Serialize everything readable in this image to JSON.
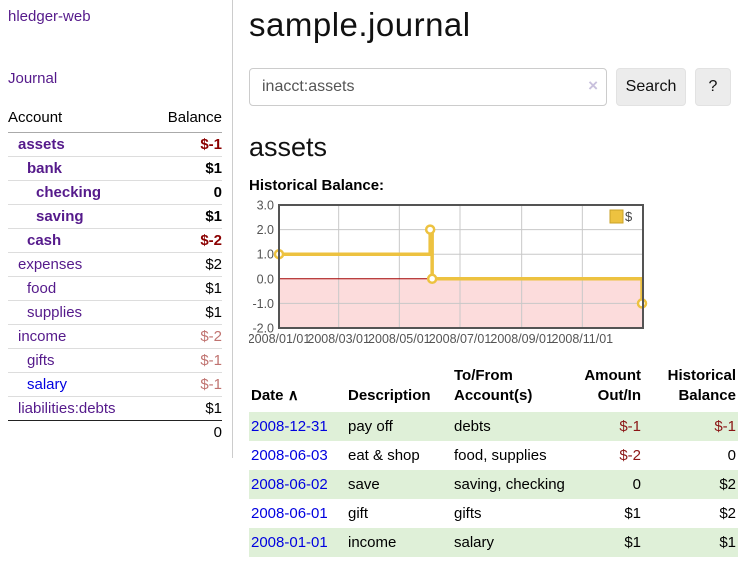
{
  "theme": {
    "link_purple": "#551a8b",
    "link_blue": "#0000e0",
    "negative_strong": "#8b0000",
    "negative_soft": "#c07370",
    "row_stripe_green": "#dff0d8",
    "chart_line_gold": "#edc240",
    "chart_negative_pink": "#fcdcdc",
    "chart_zero_red": "#a40000"
  },
  "app": {
    "brand": "hledger-web"
  },
  "sidebar": {
    "nav_journal": "Journal",
    "header": {
      "account": "Account",
      "balance": "Balance"
    },
    "accounts": [
      {
        "name": "assets",
        "level": 0,
        "bold": true,
        "name_color": "purple",
        "balance": "$-1",
        "balance_color": "negstrong",
        "balance_bold": true
      },
      {
        "name": "bank",
        "level": 1,
        "bold": true,
        "name_color": "purple",
        "balance": "$1",
        "balance_color": "black",
        "balance_bold": true
      },
      {
        "name": "checking",
        "level": 2,
        "bold": true,
        "name_color": "purple",
        "balance": "0",
        "balance_color": "black",
        "balance_bold": true
      },
      {
        "name": "saving",
        "level": 2,
        "bold": true,
        "name_color": "purple",
        "balance": "$1",
        "balance_color": "black",
        "balance_bold": true
      },
      {
        "name": "cash",
        "level": 1,
        "bold": true,
        "name_color": "purple",
        "balance": "$-2",
        "balance_color": "negstrong",
        "balance_bold": true
      },
      {
        "name": "expenses",
        "level": 0,
        "bold": false,
        "name_color": "purple",
        "balance": "$2",
        "balance_color": "black",
        "balance_bold": false
      },
      {
        "name": "food",
        "level": 1,
        "bold": false,
        "name_color": "purple",
        "balance": "$1",
        "balance_color": "black",
        "balance_bold": false
      },
      {
        "name": "supplies",
        "level": 1,
        "bold": false,
        "name_color": "purple",
        "balance": "$1",
        "balance_color": "black",
        "balance_bold": false
      },
      {
        "name": "income",
        "level": 0,
        "bold": false,
        "name_color": "purple",
        "balance": "$-2",
        "balance_color": "negsoft",
        "balance_bold": false
      },
      {
        "name": "gifts",
        "level": 1,
        "bold": false,
        "name_color": "purple",
        "balance": "$-1",
        "balance_color": "negsoft",
        "balance_bold": false
      },
      {
        "name": "salary",
        "level": 1,
        "bold": false,
        "name_color": "blue",
        "balance": "$-1",
        "balance_color": "negsoft",
        "balance_bold": false
      },
      {
        "name": "liabilities:debts",
        "level": 0,
        "bold": false,
        "name_color": "purple",
        "balance": "$1",
        "balance_color": "black",
        "balance_bold": false
      }
    ],
    "total": "0"
  },
  "header": {
    "title": "sample.journal"
  },
  "search": {
    "value": "inacct:assets",
    "clear_icon": "×",
    "button_label": "Search",
    "help_label": "?"
  },
  "account_page": {
    "heading": "assets",
    "chart_label": "Historical Balance:"
  },
  "chart_data": {
    "type": "line",
    "step": true,
    "title": "Historical Balance",
    "legend": "$",
    "legend_position": "top-right",
    "grid": true,
    "ylim": [
      -2.0,
      3.0
    ],
    "y_ticks": [
      "3.0",
      "2.0",
      "1.0",
      "0.0",
      "-1.0",
      "-2.0"
    ],
    "y_tick_values": [
      3,
      2,
      1,
      0,
      -1,
      -2
    ],
    "x_ticks": [
      "2008/01/01",
      "2008/03/01",
      "2008/05/01",
      "2008/07/01",
      "2008/09/01",
      "2008/11/01"
    ],
    "x_tick_days": [
      0,
      60,
      121,
      182,
      244,
      305
    ],
    "x_range_days": 365,
    "series": [
      {
        "name": "$",
        "points": [
          [
            "2008-01-01",
            1
          ],
          [
            "2008-06-01",
            2
          ],
          [
            "2008-06-03",
            0
          ],
          [
            "2008-12-31",
            -1
          ]
        ]
      }
    ]
  },
  "register": {
    "columns": {
      "date": "Date",
      "date_sort_icon": "∧",
      "description": "Description",
      "accounts": "To/From Account(s)",
      "amount": "Amount Out/In",
      "balance": "Historical Balance"
    },
    "rows": [
      {
        "date": "2008-12-31",
        "description": "pay off",
        "accounts": "debts",
        "amount": "$-1",
        "amount_neg": true,
        "balance": "$-1",
        "balance_neg": true,
        "stripe": true
      },
      {
        "date": "2008-06-03",
        "description": "eat & shop",
        "accounts": "food, supplies",
        "amount": "$-2",
        "amount_neg": true,
        "balance": "0",
        "balance_neg": false,
        "stripe": false
      },
      {
        "date": "2008-06-02",
        "description": "save",
        "accounts": "saving, checking",
        "amount": "0",
        "amount_neg": false,
        "balance": "$2",
        "balance_neg": false,
        "stripe": true
      },
      {
        "date": "2008-06-01",
        "description": "gift",
        "accounts": "gifts",
        "amount": "$1",
        "amount_neg": false,
        "balance": "$2",
        "balance_neg": false,
        "stripe": false
      },
      {
        "date": "2008-01-01",
        "description": "income",
        "accounts": "salary",
        "amount": "$1",
        "amount_neg": false,
        "balance": "$1",
        "balance_neg": false,
        "stripe": true
      }
    ]
  }
}
